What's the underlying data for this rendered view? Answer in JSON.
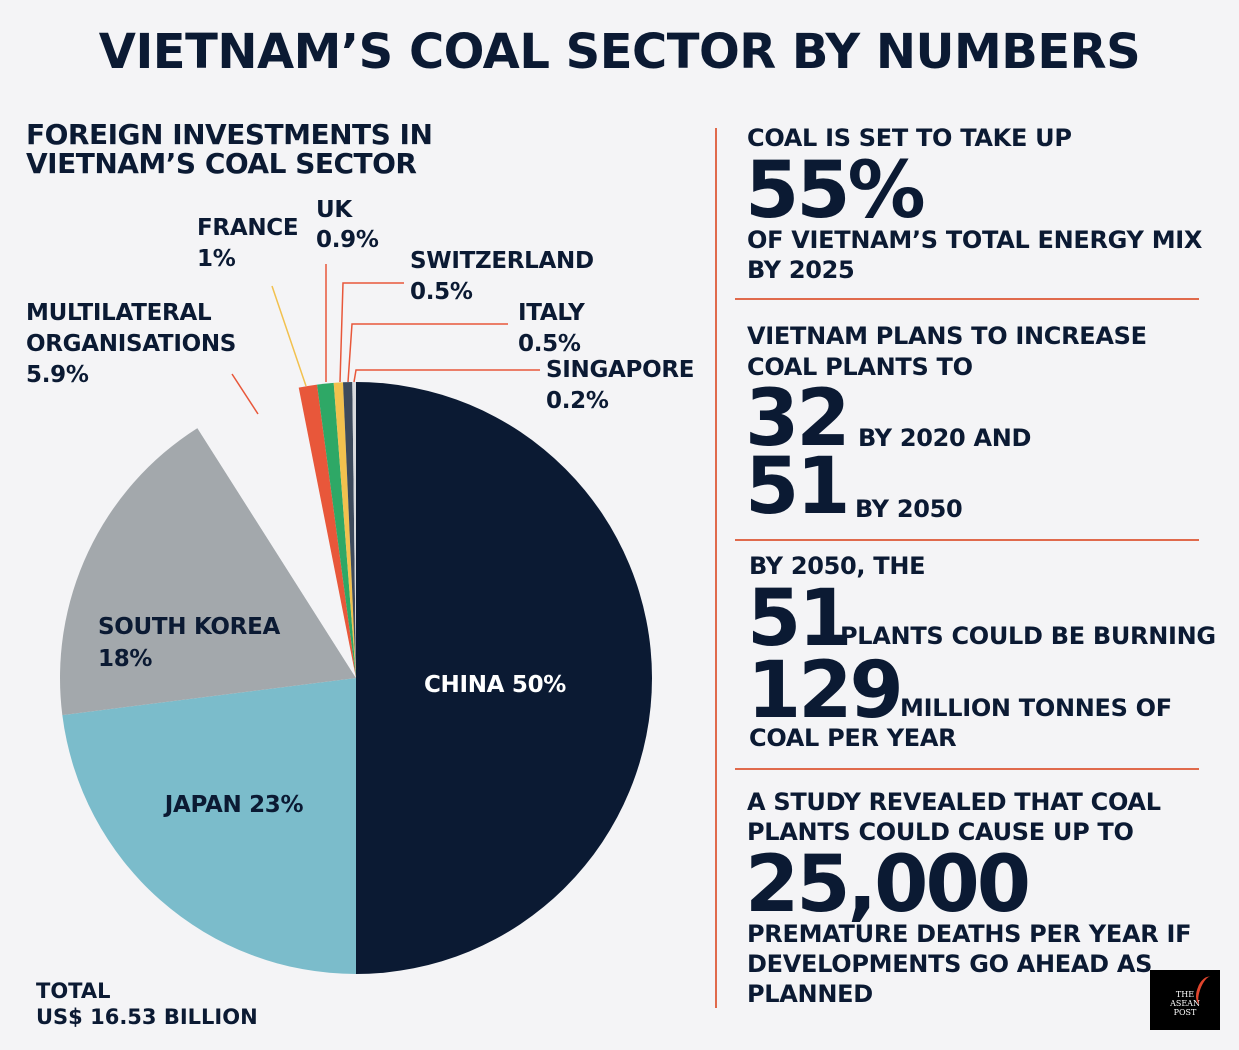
{
  "title": "VIETNAM’S COAL SECTOR BY NUMBERS",
  "chart_data": {
    "type": "pie",
    "title_lines": [
      "FOREIGN INVESTMENTS IN",
      "VIETNAM’S COAL SECTOR"
    ],
    "slices": [
      {
        "name": "CHINA",
        "value": 50,
        "label": "CHINA 50%",
        "color": "#0b1a33"
      },
      {
        "name": "JAPAN",
        "value": 23,
        "label": "JAPAN 23%",
        "color": "#7bbccb"
      },
      {
        "name": "SOUTH KOREA",
        "value": 18,
        "label_lines": [
          "SOUTH KOREA",
          "18%"
        ],
        "color": "#a3a8ac"
      },
      {
        "name": "MULTILATERAL ORGANISATIONS",
        "value": 5.9,
        "label_lines": [
          "MULTILATERAL",
          "ORGANISATIONS",
          "5.9%"
        ],
        "color": "#f4f4f6"
      },
      {
        "name": "FRANCE",
        "value": 1,
        "label_lines": [
          "FRANCE",
          "1%"
        ],
        "color": "#e8573a"
      },
      {
        "name": "UK",
        "value": 0.9,
        "label_lines": [
          "UK",
          "0.9%"
        ],
        "color": "#2ea866"
      },
      {
        "name": "SWITZERLAND",
        "value": 0.5,
        "label_lines": [
          "SWITZERLAND",
          "0.5%"
        ],
        "color": "#f2c14e"
      },
      {
        "name": "ITALY",
        "value": 0.5,
        "label_lines": [
          "ITALY",
          "0.5%"
        ],
        "color": "#3d4a5c"
      },
      {
        "name": "SINGAPORE",
        "value": 0.2,
        "label_lines": [
          "SINGAPORE",
          "0.2%"
        ],
        "color": "#d8dadd"
      }
    ],
    "total_lines": [
      "TOTAL",
      "US$ 16.53 BILLION"
    ]
  },
  "facts": {
    "f1": {
      "pre": "COAL IS SET TO TAKE UP",
      "big": "55%",
      "post1": "OF VIETNAM’S TOTAL ENERGY MIX",
      "post2": "BY 2025"
    },
    "f2": {
      "pre1": "VIETNAM PLANS TO INCREASE",
      "pre2": "COAL PLANTS TO",
      "big1": "32",
      "mid1": "BY 2020 AND",
      "big2": "51",
      "mid2": "BY 2050"
    },
    "f3": {
      "pre": "BY 2050, THE",
      "big1": "51",
      "mid1": "PLANTS COULD BE BURNING",
      "big2": "129",
      "mid2": "MILLION TONNES OF",
      "post": "COAL PER YEAR"
    },
    "f4": {
      "pre1": "A STUDY REVEALED THAT COAL",
      "pre2": "PLANTS COULD CAUSE UP TO",
      "big": "25,000",
      "post1": "PREMATURE DEATHS PER YEAR IF",
      "post2": "DEVELOPMENTS GO AHEAD AS",
      "post3": "PLANNED"
    }
  },
  "logo": {
    "line1": "THE",
    "line2": "ASEAN",
    "line3": "POST"
  },
  "colors": {
    "navy": "#0b1a33",
    "accent": "#e06a4c",
    "background": "#f4f4f6"
  }
}
